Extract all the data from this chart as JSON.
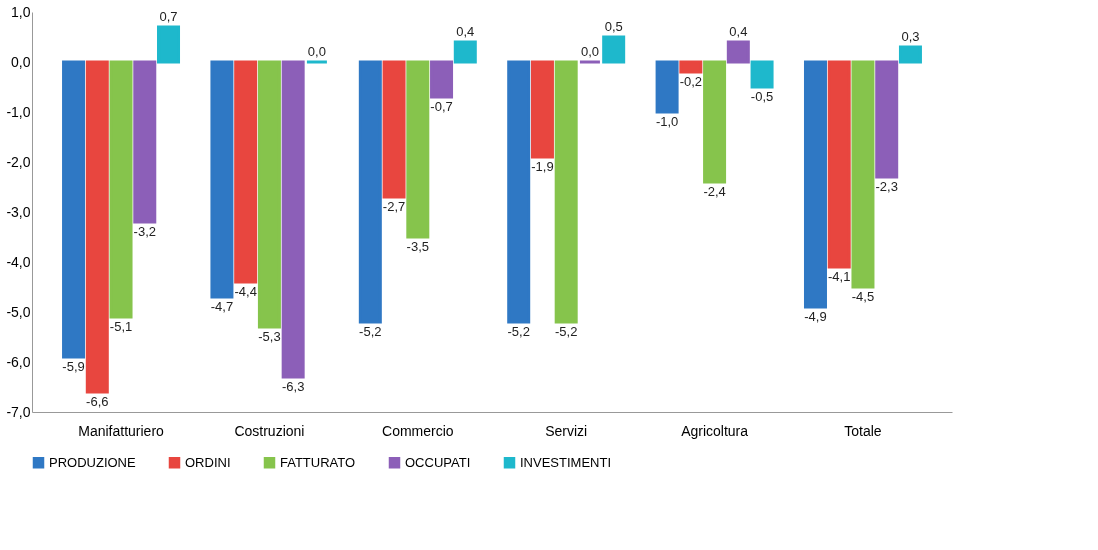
{
  "chart_data": {
    "type": "bar",
    "categories": [
      "Manifatturiero",
      "Costruzioni",
      "Commercio",
      "Servizi",
      "Agricoltura",
      "Totale"
    ],
    "series": [
      {
        "name": "PRODUZIONE",
        "color": "#2f78c4",
        "values": [
          -5.9,
          -4.7,
          -5.2,
          -5.2,
          -1.0,
          -4.9
        ],
        "value_labels": [
          "-5,9",
          "-4,7",
          "-5,2",
          "-5,2",
          "-1,0",
          "-4,9"
        ]
      },
      {
        "name": "ORDINI",
        "color": "#e8463f",
        "values": [
          -6.6,
          -4.4,
          -2.7,
          -1.9,
          -0.2,
          -4.1
        ],
        "value_labels": [
          "-6,6",
          "-4,4",
          "-2,7",
          "-1,9",
          "-0,2",
          "-4,1"
        ]
      },
      {
        "name": "FATTURATO",
        "color": "#86c44c",
        "values": [
          -5.1,
          -5.3,
          -3.5,
          -5.2,
          -2.4,
          -4.5
        ],
        "value_labels": [
          "-5,1",
          "-5,3",
          "-3,5",
          "-5,2",
          "-2,4",
          "-4,5"
        ]
      },
      {
        "name": "OCCUPATI",
        "color": "#8c5fb8",
        "values": [
          -3.2,
          -6.3,
          -0.7,
          0.0,
          0.4,
          -2.3
        ],
        "value_labels": [
          "-3,2",
          "-6,3",
          "-0,7",
          "0,0",
          "0,4",
          "-2,3"
        ]
      },
      {
        "name": "INVESTIMENTI",
        "color": "#1eb8cc",
        "values": [
          0.7,
          0.0,
          0.4,
          0.5,
          -0.5,
          0.3
        ],
        "value_labels": [
          "0,7",
          "0,0",
          "0,4",
          "0,5",
          "-0,5",
          "0,3"
        ]
      }
    ],
    "ylim": [
      -7.0,
      1.0
    ],
    "yticks": [
      {
        "value": 1,
        "label": "1,0"
      },
      {
        "value": 0,
        "label": "0,0"
      },
      {
        "value": -1,
        "label": "-1,0"
      },
      {
        "value": -2,
        "label": "-2,0"
      },
      {
        "value": -3,
        "label": "-3,0"
      },
      {
        "value": -4,
        "label": "-4,0"
      },
      {
        "value": -5,
        "label": "-5,0"
      },
      {
        "value": -6,
        "label": "-6,0"
      },
      {
        "value": -7,
        "label": "-7,0"
      }
    ],
    "grid": false,
    "legend": "bottom"
  }
}
